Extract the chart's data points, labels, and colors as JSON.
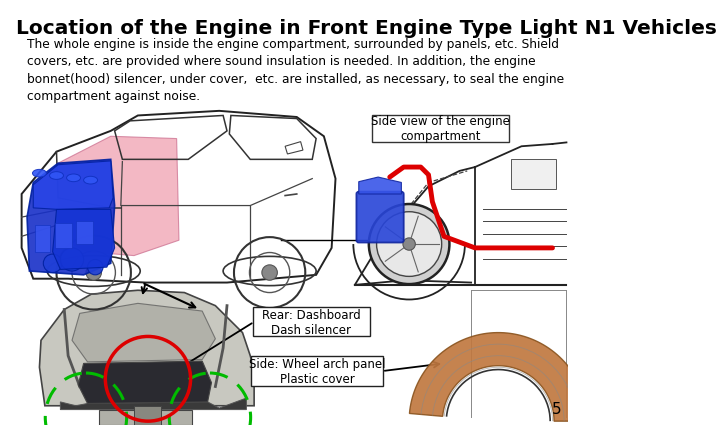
{
  "title": "Location of the Engine in Front Engine Type Light N1 Vehicles",
  "body_text": "The whole engine is inside the engine compartment, surrounded by panels, etc. Shield\ncovers, etc. are provided where sound insulation is needed. In addition, the engine\nbonnet(hood) silencer, under cover,  etc. are installed, as necessary, to seal the engine\ncompartment against noise.",
  "label_side_view": "Side view of the engine\ncompartment",
  "label_rear_dashboard": "Rear: Dashboard\nDash silencer",
  "label_side_wheel": "Side: Wheel arch panel\nPlastic cover",
  "page_number": "5",
  "bg_color": "#ffffff",
  "title_fontsize": 14.5,
  "body_fontsize": 8.8,
  "label_fontsize": 8.5
}
